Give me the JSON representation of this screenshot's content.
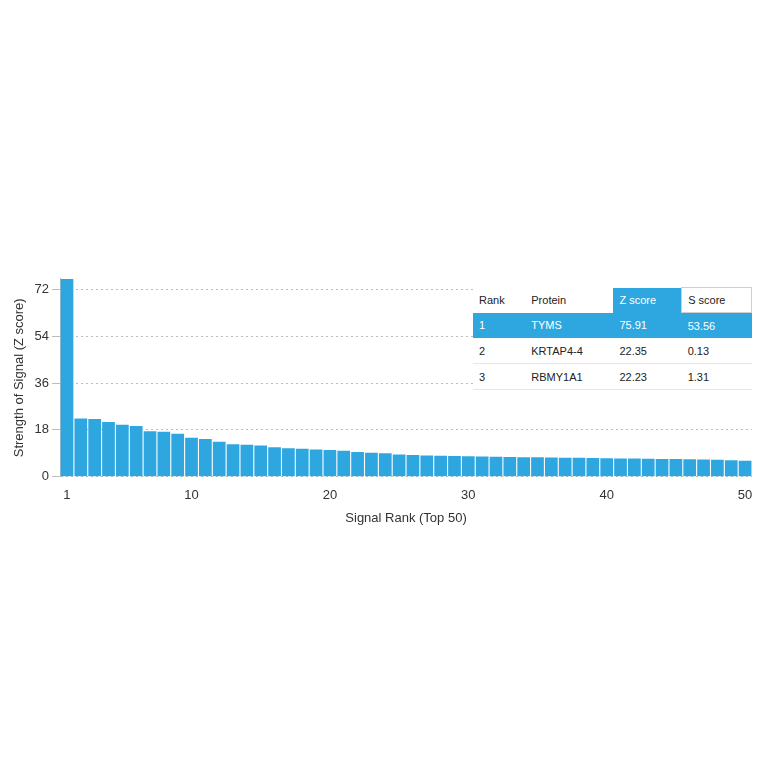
{
  "chart_data": {
    "type": "bar",
    "xlabel": "Signal Rank (Top 50)",
    "ylabel": "Strength of Signal (Z score)",
    "categories": [
      "1",
      null,
      null,
      null,
      null,
      null,
      null,
      null,
      null,
      "10",
      null,
      null,
      null,
      null,
      null,
      null,
      null,
      null,
      null,
      "20",
      null,
      null,
      null,
      null,
      null,
      null,
      null,
      null,
      null,
      "30",
      null,
      null,
      null,
      null,
      null,
      null,
      null,
      null,
      null,
      "40",
      null,
      null,
      null,
      null,
      null,
      null,
      null,
      null,
      null,
      "50"
    ],
    "values": [
      75.91,
      22.35,
      22.23,
      21.0,
      20.0,
      19.5,
      17.5,
      17.3,
      16.5,
      15.0,
      14.5,
      13.5,
      12.5,
      12.3,
      12.0,
      11.3,
      11.0,
      10.8,
      10.5,
      10.3,
      10.0,
      9.5,
      9.2,
      9.0,
      8.6,
      8.4,
      8.2,
      8.1,
      8.0,
      7.9,
      7.8,
      7.7,
      7.6,
      7.5,
      7.5,
      7.4,
      7.3,
      7.3,
      7.2,
      7.1,
      7.0,
      7.0,
      6.9,
      6.8,
      6.8,
      6.7,
      6.6,
      6.5,
      6.4,
      6.2
    ],
    "color": "#2ea7e0",
    "ylim": [
      0,
      76
    ],
    "yticks": [
      0,
      18,
      36,
      54,
      72
    ],
    "grid": true
  },
  "table": {
    "columns": [
      "Rank",
      "Protein",
      "Z score",
      "S score"
    ],
    "rows": [
      [
        1,
        "TYMS",
        75.91,
        53.56
      ],
      [
        2,
        "KRTAP4-4",
        22.35,
        0.13
      ],
      [
        3,
        "RBMY1A1",
        22.23,
        1.31
      ]
    ]
  }
}
